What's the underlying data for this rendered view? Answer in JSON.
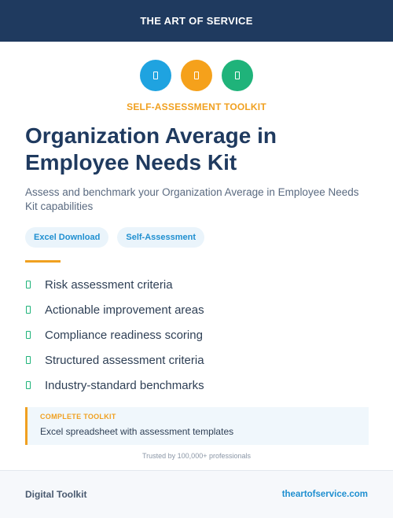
{
  "header": {
    "brand": "THE ART OF SERVICE"
  },
  "icons": [
    {
      "name": "doc-icon-blue",
      "color": "#1fa3e0"
    },
    {
      "name": "doc-icon-orange",
      "color": "#f5a11b"
    },
    {
      "name": "doc-icon-green",
      "color": "#1fb37a"
    }
  ],
  "eyebrow": "SELF-ASSESSMENT TOOLKIT",
  "title": "Organization Average in Employee Needs Kit",
  "subtitle": "Assess and benchmark your Organization Average in Employee Needs Kit capabilities",
  "tags": [
    "Excel Download",
    "Self-Assessment"
  ],
  "features": [
    "Risk assessment criteria",
    "Actionable improvement areas",
    "Compliance readiness scoring",
    "Structured assessment criteria",
    "Industry-standard benchmarks"
  ],
  "callout": {
    "title": "COMPLETE TOOLKIT",
    "text": "Excel spreadsheet with assessment templates"
  },
  "trusted": "Trusted by 100,000+ professionals",
  "footer": {
    "left": "Digital Toolkit",
    "right": "theartofservice.com"
  },
  "colors": {
    "navy": "#1f3a5f",
    "accent": "#f0a020",
    "link": "#1f8fd0",
    "green": "#1fb37a"
  }
}
